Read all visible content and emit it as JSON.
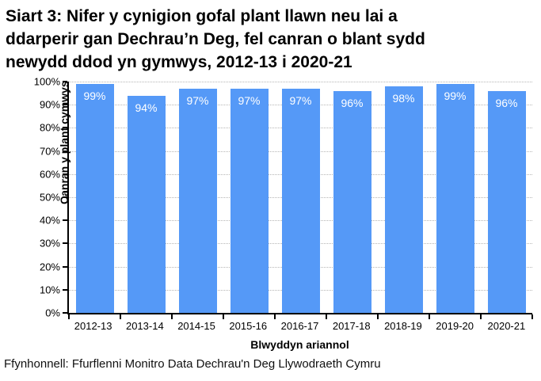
{
  "title_lines": [
    "Siart 3: Nifer y cynigion gofal plant llawn neu lai a",
    "ddarperir gan Dechrau’n Deg, fel canran o blant sydd",
    "newydd ddod yn gymwys, 2012-13 i 2020-21"
  ],
  "source": "Ffynhonnell: Ffurflenni Monitro Data Dechrau'n Deg Llywodraeth Cymru",
  "colors": {
    "bar": "#5599F7",
    "grid": "#b5b5b5",
    "axis": "#000000",
    "bar_label": "#ffffff"
  },
  "chart_data": {
    "type": "bar",
    "title": "Siart 3: Nifer y cynigion gofal plant llawn neu lai a ddarperir gan Dechrau’n Deg, fel canran o blant sydd newydd ddod yn gymwys, 2012-13 i 2020-21",
    "categories": [
      "2012-13",
      "2013-14",
      "2014-15",
      "2015-16",
      "2016-17",
      "2017-18",
      "2018-19",
      "2019-20",
      "2020-21"
    ],
    "values": [
      99,
      94,
      97,
      97,
      97,
      96,
      98,
      99,
      96
    ],
    "data_labels": [
      "99%",
      "94%",
      "97%",
      "97%",
      "97%",
      "96%",
      "98%",
      "99%",
      "96%"
    ],
    "xlabel": "Blwyddyn ariannol",
    "ylabel": "Canran y plant cymwys",
    "ylim": [
      0,
      100
    ],
    "ytick_step": 10,
    "ytick_labels": [
      "0%",
      "10%",
      "20%",
      "30%",
      "40%",
      "50%",
      "60%",
      "70%",
      "80%",
      "90%",
      "100%"
    ],
    "grid": "horizontal-dotted",
    "legend": "none"
  }
}
